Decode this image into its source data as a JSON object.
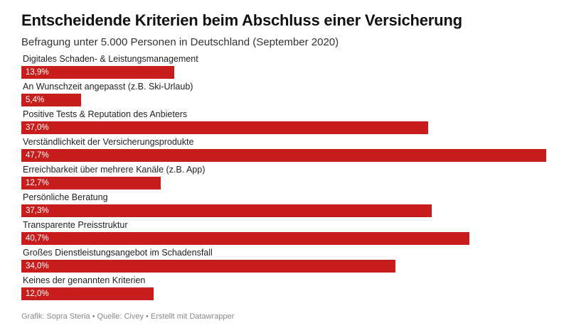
{
  "chart_data": {
    "type": "bar",
    "orientation": "horizontal",
    "title": "Entscheidende Kriterien beim Abschluss einer Versicherung",
    "subtitle": "Befragung unter 5.000 Personen in Deutschland (September 2020)",
    "categories": [
      "Digitales Schaden- & Leistungsmanagement",
      "An Wunschzeit angepasst (z.B. Ski-Urlaub)",
      "Positive Tests & Reputation des Anbieters",
      "Verständlichkeit der Versicherungsprodukte",
      "Erreichbarkeit über mehrere Kanäle (z.B. App)",
      "Persönliche Beratung",
      "Transparente Preisstruktur",
      "Großes Dienstleistungsangebot im Schadensfall",
      "Keines der genannten Kriterien"
    ],
    "values": [
      13.9,
      5.4,
      37.0,
      47.7,
      12.7,
      37.3,
      40.7,
      34.0,
      12.0
    ],
    "value_labels": [
      "13,9%",
      "5,4%",
      "37,0%",
      "47,7%",
      "12,7%",
      "37,3%",
      "40,7%",
      "34,0%",
      "12,0%"
    ],
    "xlim": [
      0,
      47.7
    ],
    "grid": false,
    "bar_color": "#c71e1d"
  },
  "footer": "Grafik: Sopra Steria • Quelle: Civey • Erstellt mit Datawrapper"
}
